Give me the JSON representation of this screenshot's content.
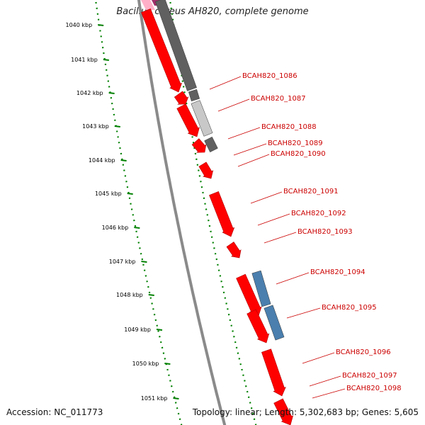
{
  "title": "Bacillus cereus AH820, complete genome",
  "footer": {
    "accession": "Accession: NC_011773",
    "summary": "Topology: linear; Length: 5,302,683 bp; Genes: 5,605"
  },
  "colors": {
    "ruler": "#008000",
    "backbone": "#8a8a8a",
    "cds": "#ff0000",
    "gene_dark": "#606060",
    "gene_light": "#c8c8c8",
    "gene_blue": "#4a7fae",
    "label": "#cc0000",
    "pink": "#ffb0c8",
    "magenta": "#a0306a"
  },
  "ruler_labels": [
    "1040 kbp",
    "1041 kbp",
    "1042 kbp",
    "1043 kbp",
    "1044 kbp",
    "1045 kbp",
    "1046 kbp",
    "1047 kbp",
    "1048 kbp",
    "1049 kbp",
    "1050 kbp",
    "1051 kbp"
  ],
  "gene_labels": [
    "BCAH820_1086",
    "BCAH820_1087",
    "BCAH820_1088",
    "BCAH820_1089",
    "BCAH820_1090",
    "BCAH820_1091",
    "BCAH820_1092",
    "BCAH820_1093",
    "BCAH820_1094",
    "BCAH820_1095",
    "BCAH820_1096",
    "BCAH820_1097",
    "BCAH820_1098"
  ]
}
